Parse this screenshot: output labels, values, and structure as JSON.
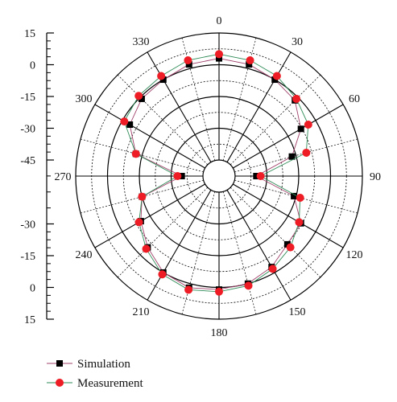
{
  "chart_data": {
    "type": "polar",
    "angular_labels": [
      "0",
      "30",
      "60",
      "90",
      "120",
      "150",
      "180",
      "210",
      "240",
      "270",
      "300",
      "330"
    ],
    "radial_axis": {
      "range": [
        -45,
        15
      ],
      "tick_labels": [
        "15",
        "0",
        "-15",
        "-30",
        "-45",
        "-30",
        "-15",
        "0",
        "15"
      ]
    },
    "grid": true,
    "legend_position": "bottom-left",
    "series": [
      {
        "name": "Simulation",
        "marker": "square",
        "color": "#000000",
        "line_color": "#a0406a",
        "points": [
          [
            0,
            3
          ],
          [
            15,
            2
          ],
          [
            30,
            0
          ],
          [
            45,
            -2
          ],
          [
            60,
            -8
          ],
          [
            75,
            -17
          ],
          [
            90,
            -35
          ],
          [
            105,
            -16
          ],
          [
            120,
            -8
          ],
          [
            135,
            -7
          ],
          [
            150,
            -3
          ],
          [
            165,
            0
          ],
          [
            180,
            1
          ],
          [
            195,
            2
          ],
          [
            210,
            0
          ],
          [
            225,
            -5
          ],
          [
            240,
            -10
          ],
          [
            255,
            -15
          ],
          [
            270,
            -35
          ],
          [
            285,
            -12
          ],
          [
            300,
            -4
          ],
          [
            315,
            -1
          ],
          [
            330,
            0
          ],
          [
            345,
            2
          ]
        ]
      },
      {
        "name": "Measurement",
        "marker": "circle",
        "color": "#ee1c24",
        "line_color": "#2e8b57",
        "points": [
          [
            0,
            5
          ],
          [
            15,
            4
          ],
          [
            30,
            2
          ],
          [
            45,
            -1
          ],
          [
            60,
            -4
          ],
          [
            75,
            -10
          ],
          [
            90,
            -33
          ],
          [
            105,
            -13
          ],
          [
            120,
            -9
          ],
          [
            135,
            -5
          ],
          [
            150,
            -2
          ],
          [
            165,
            1
          ],
          [
            180,
            2
          ],
          [
            195,
            3
          ],
          [
            210,
            1
          ],
          [
            225,
            -4
          ],
          [
            240,
            -9
          ],
          [
            255,
            -15
          ],
          [
            270,
            -33
          ],
          [
            285,
            -12
          ],
          [
            300,
            -1
          ],
          [
            315,
            1
          ],
          [
            330,
            2
          ],
          [
            345,
            4
          ]
        ]
      }
    ]
  }
}
